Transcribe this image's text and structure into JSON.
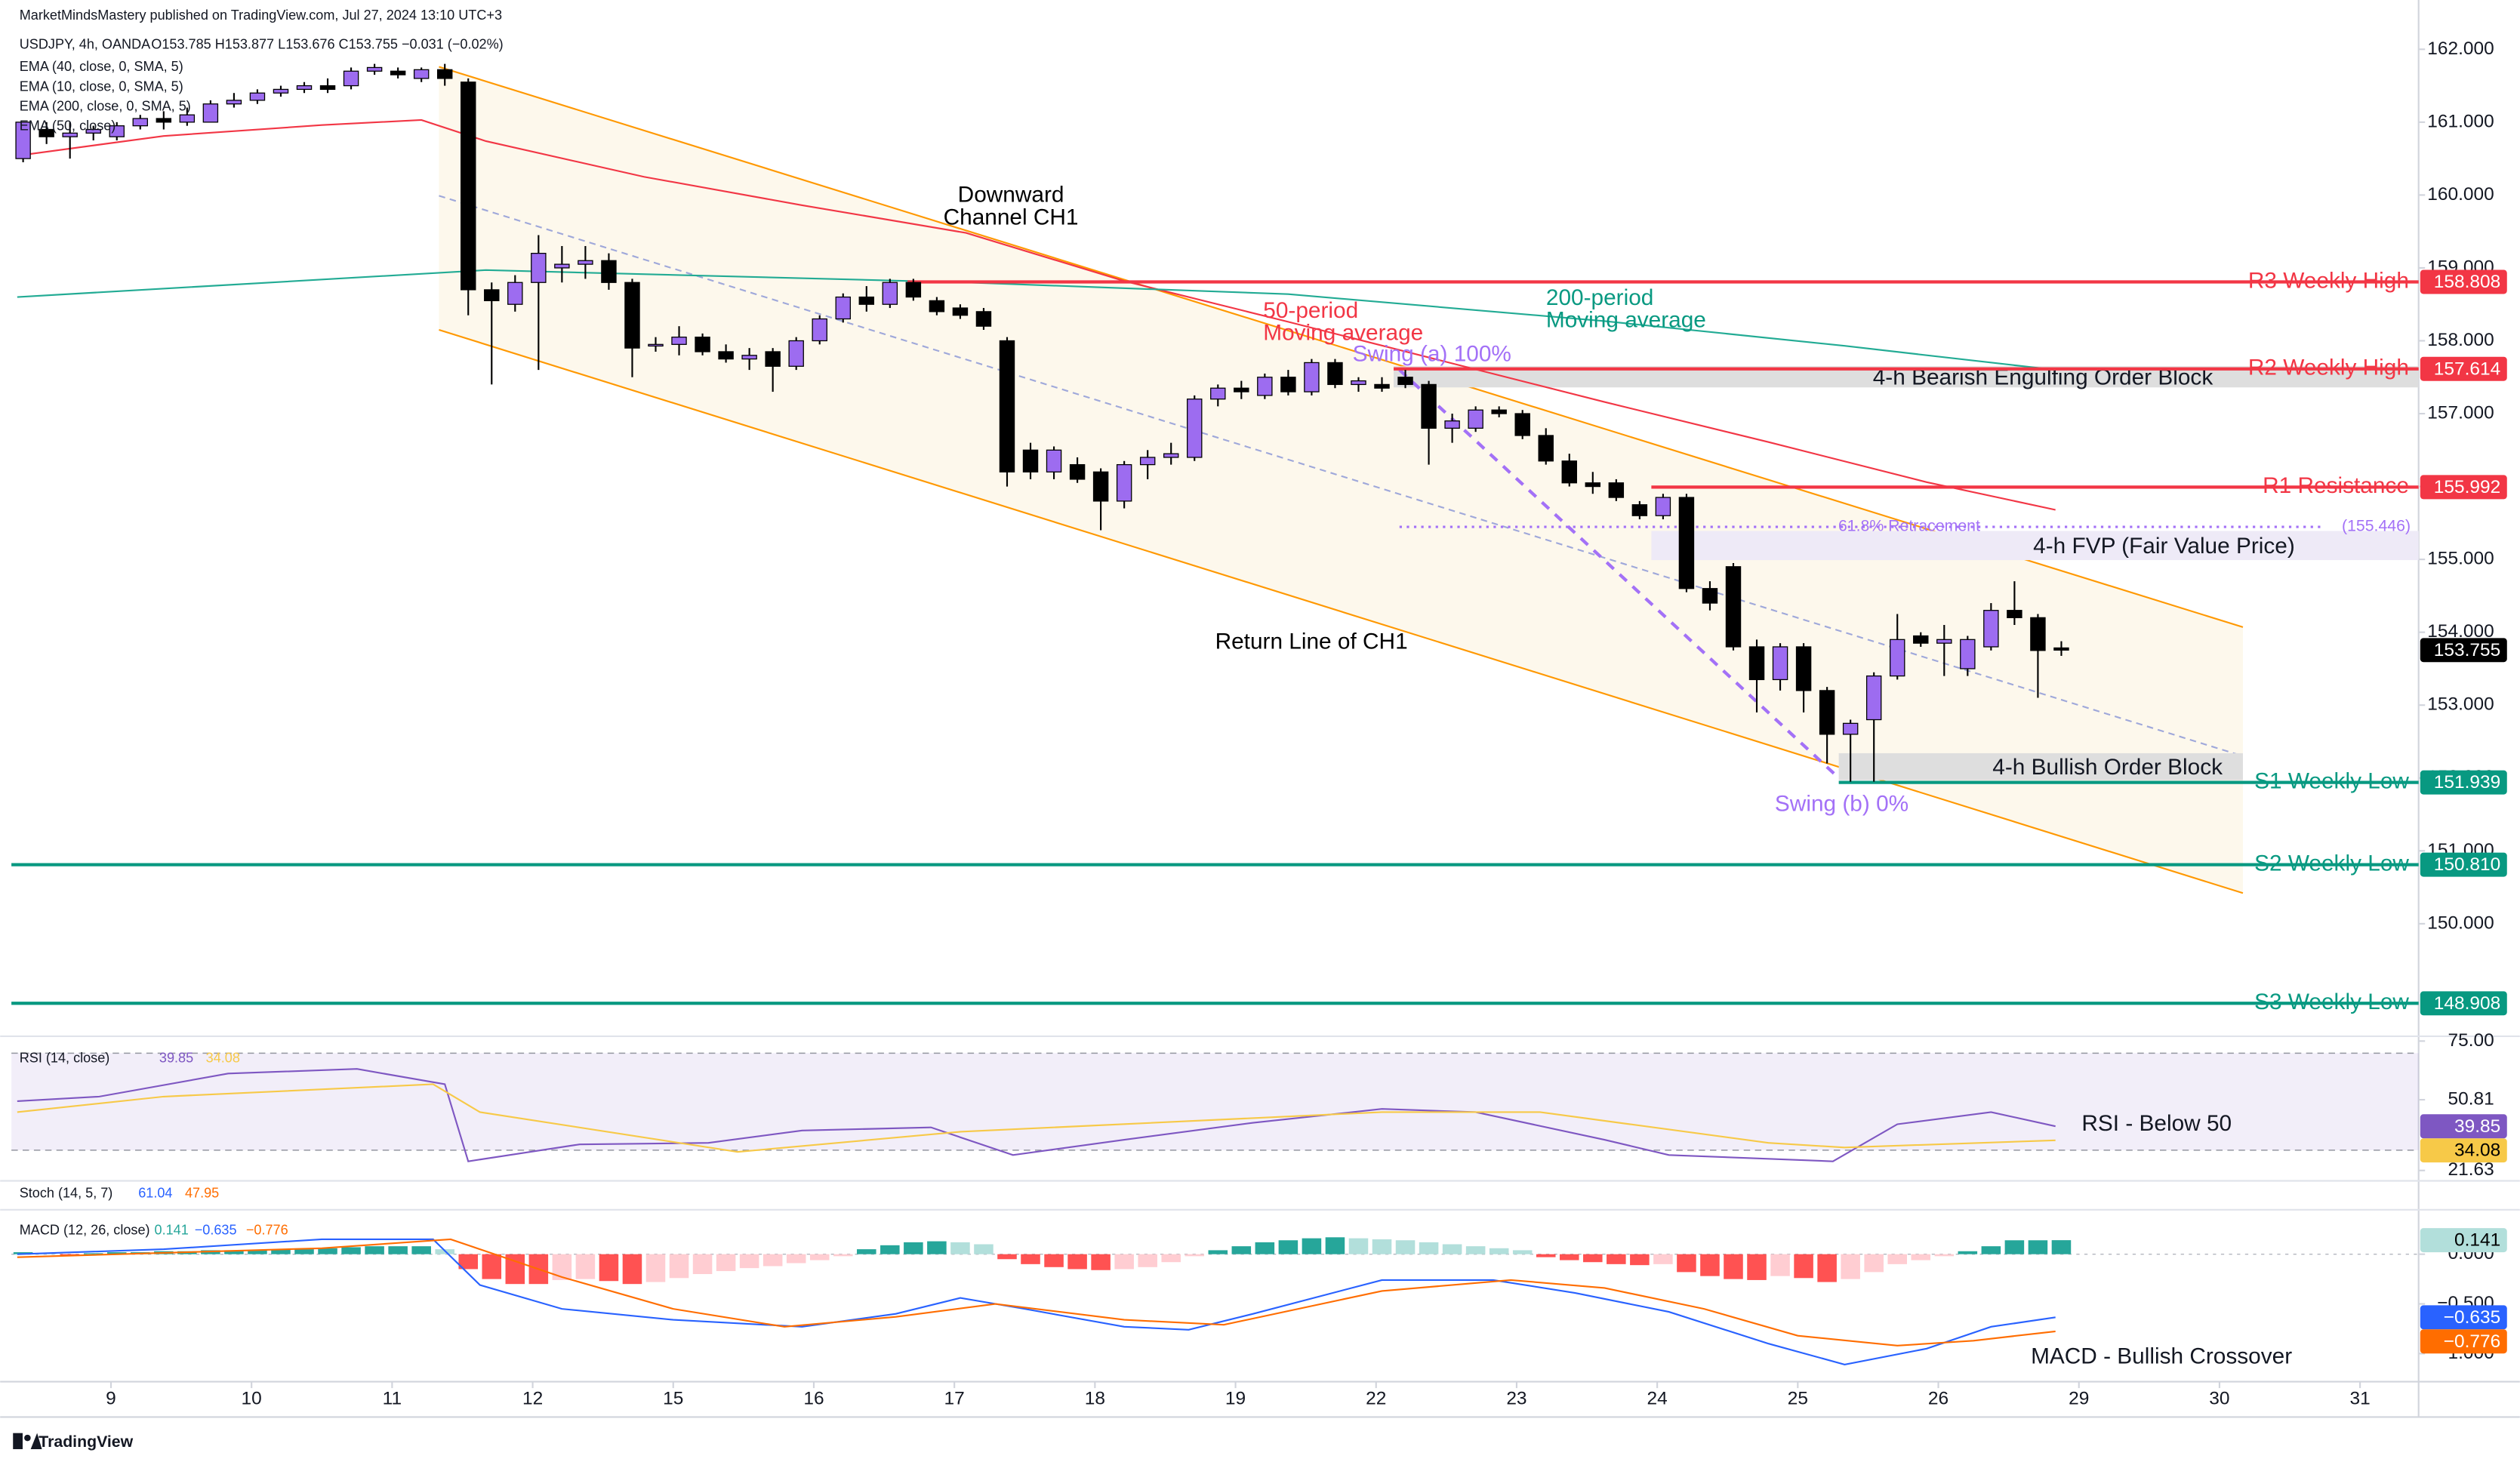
{
  "header": {
    "publisher": "MarketMindsMastery published on TradingView.com, Jul 27, 2024 13:10 UTC+3",
    "symbol": "USDJPY, 4h, OANDA",
    "ohlc": "O153.785 H153.877 L153.676 C153.755 −0.031 (−0.02%)",
    "indicators": [
      "EMA (40, close, 0, SMA, 5)",
      "EMA (10, close, 0, SMA, 5)",
      "EMA (200, close, 0, SMA, 5)",
      "EMA (50, close)"
    ]
  },
  "footer": {
    "brand": "TradingView"
  },
  "chart_data": [
    {
      "type": "candlestick",
      "x": [
        -15,
        -11,
        -7,
        -3,
        1,
        5,
        9,
        13,
        17,
        21,
        25,
        29,
        33,
        37,
        41,
        45,
        49,
        53,
        57,
        61,
        65,
        69,
        73,
        77,
        81,
        85,
        89,
        93,
        97,
        101,
        105,
        109,
        113,
        117,
        121,
        125,
        129,
        133,
        137,
        141,
        145,
        149,
        153,
        157,
        161,
        165,
        169,
        173,
        177,
        181,
        185,
        189,
        193,
        197,
        201,
        205,
        209,
        213,
        217,
        221,
        225,
        229,
        233,
        237,
        241,
        245,
        249,
        253,
        257,
        261,
        265,
        269,
        273,
        277,
        281,
        285,
        289,
        293,
        297,
        301,
        305,
        309,
        313,
        317,
        321,
        325,
        329,
        333
      ],
      "open": [
        160.5,
        160.9,
        160.8,
        160.85,
        160.8,
        160.95,
        161.05,
        161.0,
        161.0,
        161.25,
        161.3,
        161.4,
        161.45,
        161.5,
        161.5,
        161.7,
        161.7,
        161.6,
        161.72,
        161.55,
        158.7,
        158.5,
        158.8,
        159.0,
        159.05,
        159.1,
        158.8,
        157.95,
        157.95,
        158.05,
        157.85,
        157.75,
        157.85,
        157.65,
        158.0,
        158.3,
        158.6,
        158.5,
        158.8,
        158.55,
        158.45,
        158.4,
        158.0,
        156.5,
        156.2,
        156.3,
        156.2,
        155.8,
        156.3,
        156.4,
        156.4,
        157.2,
        157.35,
        157.25,
        157.5,
        157.3,
        157.7,
        157.4,
        157.4,
        157.5,
        157.4,
        156.8,
        156.8,
        157.05,
        157.0,
        156.7,
        156.35,
        156.05,
        156.05,
        155.75,
        155.6,
        155.85,
        154.6,
        154.9,
        153.8,
        153.35,
        153.8,
        153.2,
        152.6,
        152.8,
        153.4,
        153.95,
        153.85,
        153.5,
        153.8,
        154.3,
        154.2,
        153.785
      ],
      "high": [
        161.0,
        161.0,
        161.0,
        160.95,
        161.0,
        161.1,
        161.15,
        161.2,
        161.3,
        161.4,
        161.45,
        161.5,
        161.55,
        161.6,
        161.75,
        161.8,
        161.75,
        161.75,
        161.8,
        161.6,
        158.8,
        158.9,
        159.45,
        159.3,
        159.3,
        159.2,
        158.85,
        158.05,
        158.2,
        158.1,
        157.95,
        157.9,
        157.9,
        158.05,
        158.35,
        158.65,
        158.75,
        158.85,
        158.85,
        158.6,
        158.5,
        158.45,
        158.05,
        156.6,
        156.55,
        156.4,
        156.25,
        156.35,
        156.5,
        156.6,
        157.25,
        157.4,
        157.45,
        157.55,
        157.6,
        157.75,
        157.75,
        157.5,
        157.5,
        157.6,
        157.45,
        157.0,
        157.1,
        157.1,
        157.05,
        156.8,
        156.45,
        156.2,
        156.1,
        155.8,
        155.9,
        155.9,
        154.7,
        154.95,
        153.9,
        153.85,
        153.85,
        153.25,
        152.8,
        153.45,
        154.25,
        154.0,
        154.1,
        153.95,
        154.4,
        154.7,
        154.25,
        153.877
      ],
      "low": [
        160.45,
        160.7,
        160.5,
        160.75,
        160.75,
        160.9,
        160.9,
        160.95,
        161.0,
        161.2,
        161.25,
        161.35,
        161.4,
        161.4,
        161.45,
        161.65,
        161.6,
        161.55,
        161.5,
        158.35,
        157.4,
        158.4,
        157.6,
        158.8,
        158.85,
        158.7,
        157.5,
        157.85,
        157.8,
        157.8,
        157.7,
        157.6,
        157.3,
        157.6,
        157.95,
        158.25,
        158.4,
        158.45,
        158.55,
        158.35,
        158.3,
        158.15,
        156.0,
        156.1,
        156.1,
        156.05,
        155.4,
        155.7,
        156.1,
        156.3,
        156.35,
        157.1,
        157.2,
        157.2,
        157.25,
        157.25,
        157.35,
        157.3,
        157.3,
        157.35,
        156.3,
        156.6,
        156.75,
        156.95,
        156.65,
        156.3,
        156.0,
        155.9,
        155.8,
        155.55,
        155.55,
        154.55,
        154.3,
        153.75,
        152.9,
        153.2,
        152.9,
        152.2,
        151.95,
        151.95,
        153.35,
        153.8,
        153.4,
        153.4,
        153.75,
        154.1,
        153.1,
        153.676
      ],
      "close": [
        161.0,
        160.8,
        160.85,
        160.9,
        160.95,
        161.05,
        161.0,
        161.1,
        161.25,
        161.3,
        161.4,
        161.45,
        161.5,
        161.45,
        161.7,
        161.75,
        161.65,
        161.72,
        161.6,
        158.7,
        158.55,
        158.8,
        159.2,
        159.05,
        159.1,
        158.8,
        157.9,
        157.95,
        158.05,
        157.85,
        157.75,
        157.8,
        157.65,
        158.0,
        158.3,
        158.6,
        158.5,
        158.8,
        158.6,
        158.4,
        158.35,
        158.2,
        156.2,
        156.2,
        156.5,
        156.1,
        155.8,
        156.3,
        156.4,
        156.45,
        157.2,
        157.35,
        157.3,
        157.5,
        157.3,
        157.7,
        157.4,
        157.45,
        157.35,
        157.4,
        156.8,
        156.9,
        157.05,
        157.0,
        156.7,
        156.35,
        156.05,
        156.0,
        155.85,
        155.6,
        155.85,
        154.6,
        154.4,
        153.8,
        153.35,
        153.8,
        153.2,
        152.6,
        152.75,
        153.4,
        153.9,
        153.85,
        153.9,
        153.9,
        154.3,
        154.2,
        153.75,
        153.755
      ],
      "up_color": "#9d6cf0",
      "down_color": "#000000",
      "xlim": [
        -17,
        394
      ],
      "xticks": [
        {
          "value": 0,
          "label": "9"
        },
        {
          "value": 24,
          "label": "10"
        },
        {
          "value": 48,
          "label": "11"
        },
        {
          "value": 72,
          "label": "12"
        },
        {
          "value": 96,
          "label": "15"
        },
        {
          "value": 120,
          "label": "16"
        },
        {
          "value": 144,
          "label": "17"
        },
        {
          "value": 168,
          "label": "18"
        },
        {
          "value": 192,
          "label": "19"
        },
        {
          "value": 216,
          "label": "22"
        },
        {
          "value": 240,
          "label": "23"
        },
        {
          "value": 264,
          "label": "24"
        },
        {
          "value": 288,
          "label": "25"
        },
        {
          "value": 312,
          "label": "26"
        },
        {
          "value": 336,
          "label": "29"
        },
        {
          "value": 360,
          "label": "30"
        },
        {
          "value": 384,
          "label": "31"
        }
      ],
      "ylim": [
        148.5,
        162.5
      ],
      "yticks": [
        {
          "value": 150,
          "label": "150.000"
        },
        {
          "value": 151,
          "label": "151.000"
        },
        {
          "value": 152,
          "label": "152.000"
        },
        {
          "value": 153,
          "label": "153.000"
        },
        {
          "value": 154,
          "label": "154.000"
        },
        {
          "value": 155,
          "label": "155.000"
        },
        {
          "value": 156,
          "label": "156.000"
        },
        {
          "value": 157,
          "label": "157.000"
        },
        {
          "value": 158,
          "label": "158.000"
        },
        {
          "value": 159,
          "label": "159.000"
        },
        {
          "value": 160,
          "label": "160.000"
        },
        {
          "value": 161,
          "label": "161.000"
        },
        {
          "value": 162,
          "label": "162.000"
        }
      ],
      "last_price": 153.755,
      "overlays": [
        {
          "color": "#f23645",
          "x": [
            -16,
            9,
            36,
            53,
            64,
            91,
            118,
            146,
            173,
            201,
            228,
            255,
            283,
            310,
            332
          ],
          "values": [
            160.54,
            160.81,
            160.96,
            161.03,
            160.74,
            160.25,
            159.86,
            159.48,
            158.82,
            158.26,
            157.71,
            157.16,
            156.61,
            156.06,
            155.68
          ]
        },
        {
          "color": "#22ab94",
          "x": [
            -16,
            64,
            146,
            201,
            255,
            296,
            332
          ],
          "values": [
            158.6,
            158.97,
            158.8,
            158.64,
            158.27,
            157.93,
            157.6
          ]
        }
      ],
      "channel": {
        "x": [
          56,
          364
        ],
        "upper": [
          161.76,
          154.07
        ],
        "middle": [
          159.99,
          152.3
        ],
        "lower": [
          158.15,
          150.42
        ],
        "color": "#ff9800",
        "fill": "#fdf8ec"
      },
      "zones": [
        {
          "label": "4-h Bearish Engulfing Order Block",
          "top": 157.65,
          "bottom": 157.36,
          "start": 219,
          "color": "#dedede"
        },
        {
          "label": "4-h FVP (Fair Value Price)",
          "top": 155.39,
          "bottom": 154.99,
          "start": 263,
          "color": "#eeeaf7"
        },
        {
          "label": "4-h Bullish Order Block",
          "top": 152.34,
          "bottom": 151.97,
          "start": 295,
          "end": 364,
          "color": "#dedede"
        }
      ],
      "fib": {
        "label": "61.8% Retracement",
        "value": 155.446,
        "value_label": "(155.446)",
        "start": 220,
        "end": 378,
        "color": "#a371f7"
      },
      "swing": {
        "x": [
          220,
          295
        ],
        "values": [
          157.6,
          152.0
        ],
        "labels": [
          "Swing (a) 100%",
          "Swing (b) 0%"
        ],
        "color": "#a371f7"
      },
      "levels": [
        {
          "label": "R3 Weekly High",
          "value": 158.808,
          "color": "#f23645",
          "start": 136
        },
        {
          "label": "R2 Weekly High",
          "value": 157.614,
          "color": "#f23645",
          "start": 219
        },
        {
          "label": "R1 Resistance",
          "value": 155.992,
          "color": "#f23645",
          "start": 263
        },
        {
          "label": "S1 Weekly Low",
          "value": 151.939,
          "color": "#089981",
          "start": 295
        },
        {
          "label": "S2 Weekly Low",
          "value": 150.81,
          "value_label": "150.810",
          "color": "#089981",
          "start": -17
        },
        {
          "label": "S3 Weekly Low",
          "value": 148.908,
          "color": "#089981",
          "start": -17
        }
      ],
      "annotations": [
        {
          "lines": [
            "Downward",
            "Channel CH1"
          ],
          "color": "#000000"
        },
        {
          "lines": [
            "50-period",
            "Moving average"
          ],
          "color": "#f23645"
        },
        {
          "lines": [
            "200-period",
            "Moving average"
          ],
          "color": "#089981"
        },
        {
          "lines": [
            "Return Line of CH1"
          ],
          "color": "#000000"
        }
      ]
    },
    {
      "type": "rsi",
      "title": "RSI (14, close)",
      "ylim": [
        20,
        75
      ],
      "yticks": [
        {
          "value": 75,
          "label": "75.00"
        },
        50.81,
        21.63
      ],
      "band": [
        70,
        30
      ],
      "band_color": "#7e57c2",
      "series": [
        {
          "color": "#7e57c2",
          "x": [
            -16,
            -2,
            20,
            42,
            57,
            61,
            80,
            102,
            118,
            140,
            154,
            173,
            195,
            217,
            233,
            255,
            266,
            280,
            294,
            305,
            321,
            332
          ],
          "values": [
            50.2,
            52.1,
            61.6,
            63.5,
            57.2,
            25.4,
            32.4,
            33.0,
            38.1,
            39.4,
            28.0,
            34.3,
            41.3,
            47.0,
            45.7,
            34.3,
            28.0,
            26.7,
            25.4,
            40.7,
            45.7,
            39.85
          ]
        },
        {
          "color": "#f7c948",
          "x": [
            -16,
            9,
            55,
            63,
            107,
            145,
            217,
            244,
            283,
            296,
            332
          ],
          "values": [
            45.7,
            52.1,
            57.2,
            45.7,
            29.3,
            37.6,
            45.7,
            45.7,
            33.0,
            31.1,
            34.08
          ]
        }
      ],
      "annotation": "RSI - Below 50"
    },
    {
      "type": "stoch",
      "title": "Stoch (14, 5, 7)",
      "values": [
        61.04,
        47.95
      ],
      "colors": [
        "#2962ff",
        "#ff6d00"
      ]
    },
    {
      "type": "macd",
      "title": "MACD (12, 26, close)",
      "ylim": [
        -1.25,
        0.35
      ],
      "yticks": [
        {
          "value": 0,
          "label": "0.000"
        },
        {
          "value": -0.5,
          "label": "−0.500"
        },
        {
          "value": -1,
          "label": "−1.000"
        }
      ],
      "histogram": {
        "values": [
          0.02,
          0.01,
          -0.01,
          0.01,
          0.02,
          0.02,
          0.03,
          0.03,
          0.04,
          0.04,
          0.04,
          0.05,
          0.05,
          0.06,
          0.07,
          0.08,
          0.08,
          0.08,
          0.05,
          -0.15,
          -0.25,
          -0.3,
          -0.3,
          -0.26,
          -0.25,
          -0.27,
          -0.3,
          -0.28,
          -0.24,
          -0.2,
          -0.17,
          -0.14,
          -0.12,
          -0.09,
          -0.06,
          -0.02,
          0.05,
          0.09,
          0.12,
          0.13,
          0.12,
          0.1,
          -0.05,
          -0.1,
          -0.13,
          -0.15,
          -0.16,
          -0.15,
          -0.13,
          -0.08,
          -0.02,
          0.04,
          0.08,
          0.12,
          0.14,
          0.16,
          0.17,
          0.16,
          0.15,
          0.14,
          0.12,
          0.1,
          0.08,
          0.06,
          0.04,
          -0.03,
          -0.06,
          -0.08,
          -0.1,
          -0.11,
          -0.1,
          -0.18,
          -0.22,
          -0.25,
          -0.26,
          -0.22,
          -0.24,
          -0.28,
          -0.25,
          -0.18,
          -0.1,
          -0.06,
          -0.02,
          0.03,
          0.08,
          0.14,
          0.14,
          0.141
        ],
        "colors": [
          "#26a69a",
          "#b2dfdb",
          "#ff5252",
          "#ffcdd2"
        ]
      },
      "series": [
        {
          "color": "#2962ff",
          "x": [
            -16,
            9,
            36,
            55,
            63,
            77,
            96,
            118,
            134,
            145,
            156,
            173,
            184,
            195,
            217,
            236,
            250,
            266,
            283,
            296,
            310,
            321,
            332
          ],
          "values": [
            0,
            0.05,
            0.15,
            0.15,
            -0.31,
            -0.55,
            -0.66,
            -0.73,
            -0.6,
            -0.44,
            -0.55,
            -0.73,
            -0.76,
            -0.6,
            -0.26,
            -0.26,
            -0.39,
            -0.58,
            -0.9,
            -1.11,
            -0.95,
            -0.73,
            -0.635
          ],
          "last_label": "−0.635"
        },
        {
          "color": "#ff6d00",
          "x": [
            -16,
            36,
            58,
            77,
            96,
            115,
            134,
            151,
            173,
            190,
            217,
            239,
            255,
            272,
            288,
            305,
            318,
            332
          ],
          "values": [
            -0.03,
            0.06,
            0.15,
            -0.23,
            -0.55,
            -0.73,
            -0.63,
            -0.5,
            -0.66,
            -0.71,
            -0.37,
            -0.26,
            -0.34,
            -0.55,
            -0.82,
            -0.92,
            -0.87,
            -0.776
          ],
          "last_label": "−0.776"
        }
      ],
      "annotation": "MACD - Bullish Crossover"
    }
  ]
}
